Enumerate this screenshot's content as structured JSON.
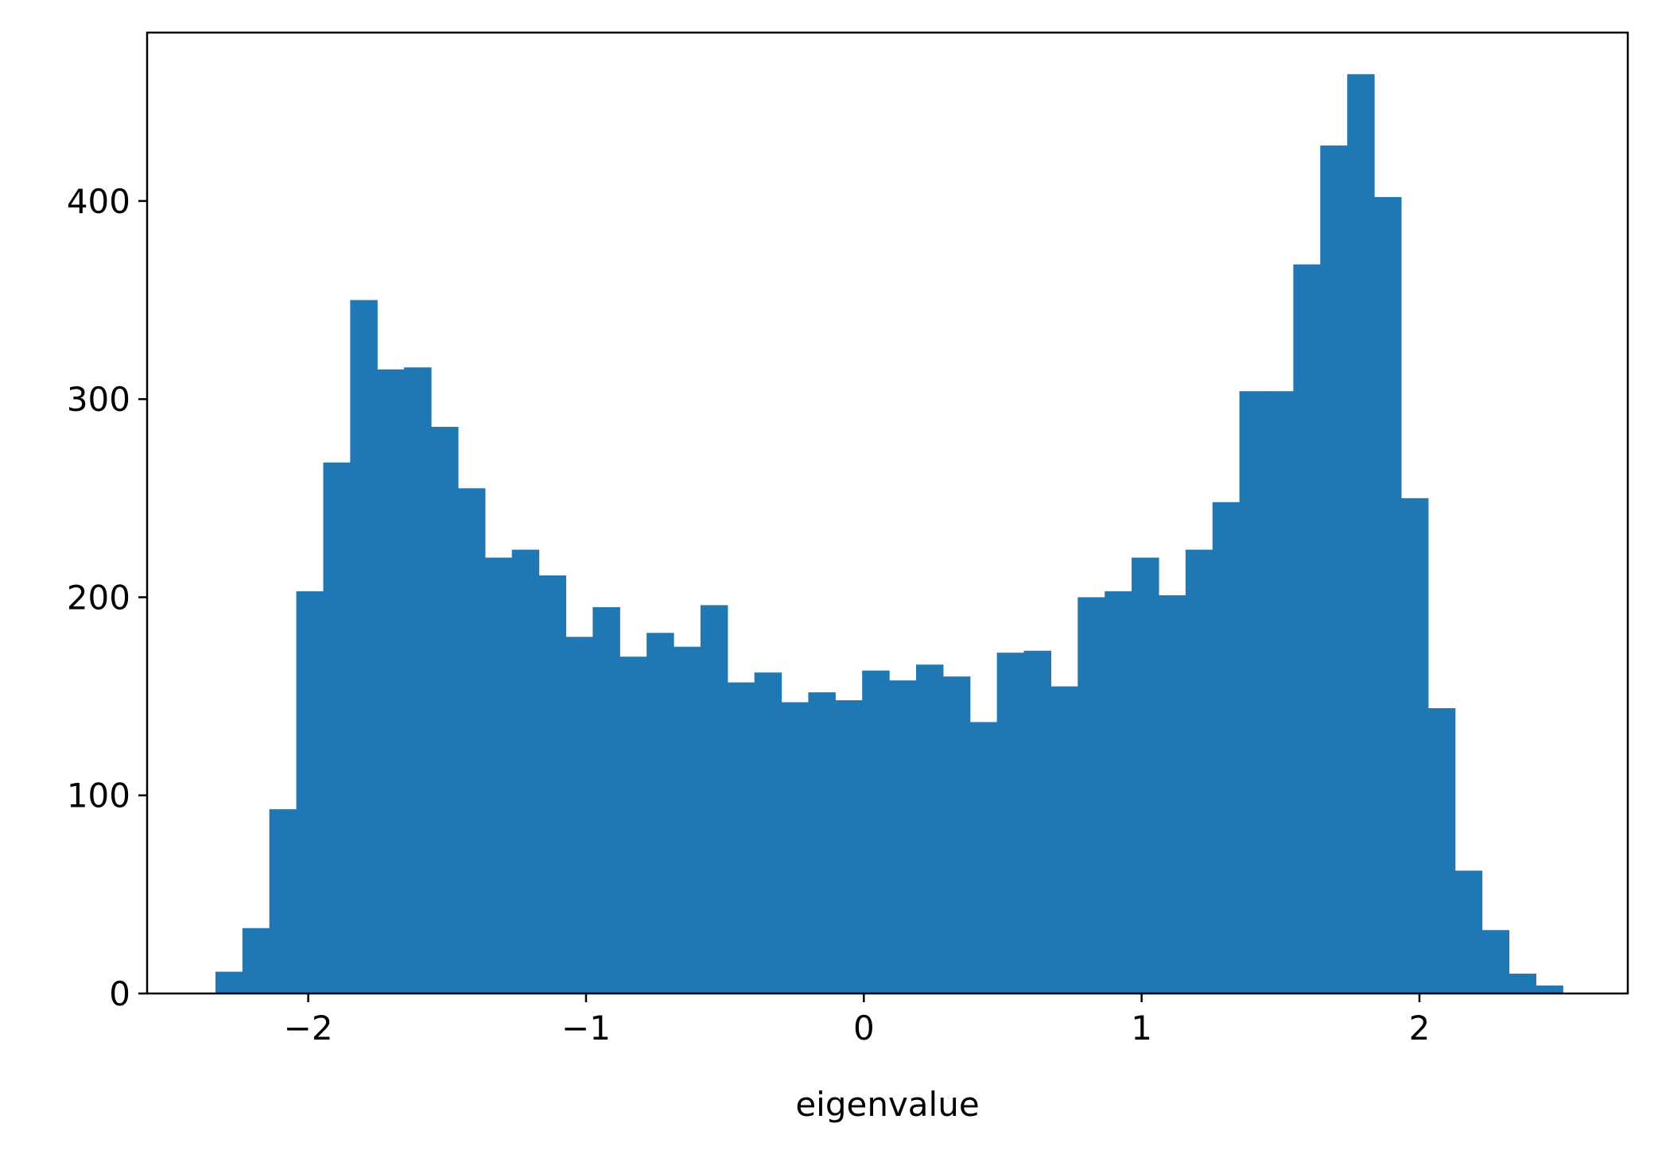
{
  "chart_data": {
    "type": "bar",
    "xlabel": "eigenvalue",
    "ylabel": "",
    "title": "",
    "xlim": [
      -2.58,
      2.75
    ],
    "ylim": [
      0,
      485
    ],
    "grid": false,
    "bar_color": "#1f77b4",
    "x_ticks": [
      {
        "value": -2,
        "label": "−2"
      },
      {
        "value": -1,
        "label": "−1"
      },
      {
        "value": 0,
        "label": "0"
      },
      {
        "value": 1,
        "label": "1"
      },
      {
        "value": 2,
        "label": "2"
      }
    ],
    "y_ticks": [
      {
        "value": 0,
        "label": "0"
      },
      {
        "value": 100,
        "label": "100"
      },
      {
        "value": 200,
        "label": "200"
      },
      {
        "value": 300,
        "label": "300"
      },
      {
        "value": 400,
        "label": "400"
      }
    ],
    "bin_edges": [
      -2.334,
      -2.237,
      -2.14,
      -2.043,
      -1.946,
      -1.849,
      -1.752,
      -1.655,
      -1.558,
      -1.461,
      -1.364,
      -1.267,
      -1.17,
      -1.073,
      -0.976,
      -0.879,
      -0.782,
      -0.685,
      -0.588,
      -0.491,
      -0.394,
      -0.297,
      -0.2,
      -0.103,
      -0.006,
      0.091,
      0.188,
      0.285,
      0.382,
      0.479,
      0.576,
      0.673,
      0.77,
      0.867,
      0.964,
      1.061,
      1.158,
      1.255,
      1.352,
      1.449,
      1.546,
      1.643,
      1.74,
      1.837,
      1.934,
      2.031,
      2.128,
      2.225,
      2.322,
      2.419,
      2.516
    ],
    "values": [
      11,
      33,
      93,
      203,
      268,
      350,
      315,
      316,
      286,
      255,
      220,
      224,
      211,
      180,
      195,
      170,
      182,
      175,
      196,
      157,
      162,
      147,
      152,
      148,
      163,
      158,
      166,
      160,
      137,
      172,
      173,
      155,
      200,
      203,
      220,
      201,
      224,
      248,
      304,
      304,
      368,
      428,
      464,
      402,
      250,
      144,
      62,
      32,
      10,
      4
    ]
  }
}
